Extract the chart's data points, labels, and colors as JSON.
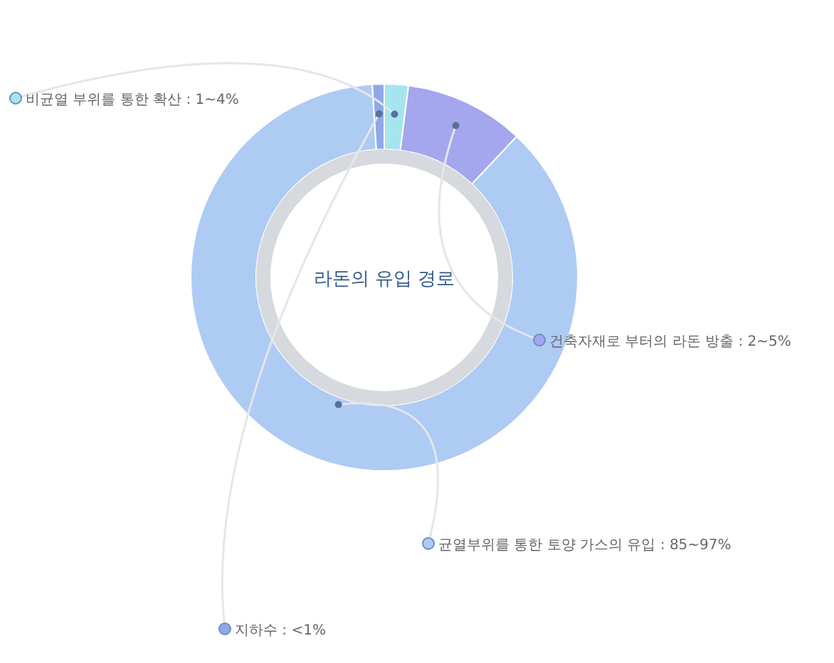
{
  "chart_data": {
    "type": "donut",
    "title": "라돈의 유입 경로",
    "categories": [
      "지하수 : <1%",
      "비균열 부위를 통한 확산 : 1~4%",
      "건축자재로 부터의 라돈 방출 : 2~5%",
      "균열부위를 통한 토양 가스의 유입 : 85~97%"
    ],
    "values": [
      1,
      2,
      10,
      87
    ],
    "colors": [
      "#8fa8e8",
      "#a6e4ee",
      "#a4a6ee",
      "#aecbf4"
    ],
    "legend": "right"
  }
}
